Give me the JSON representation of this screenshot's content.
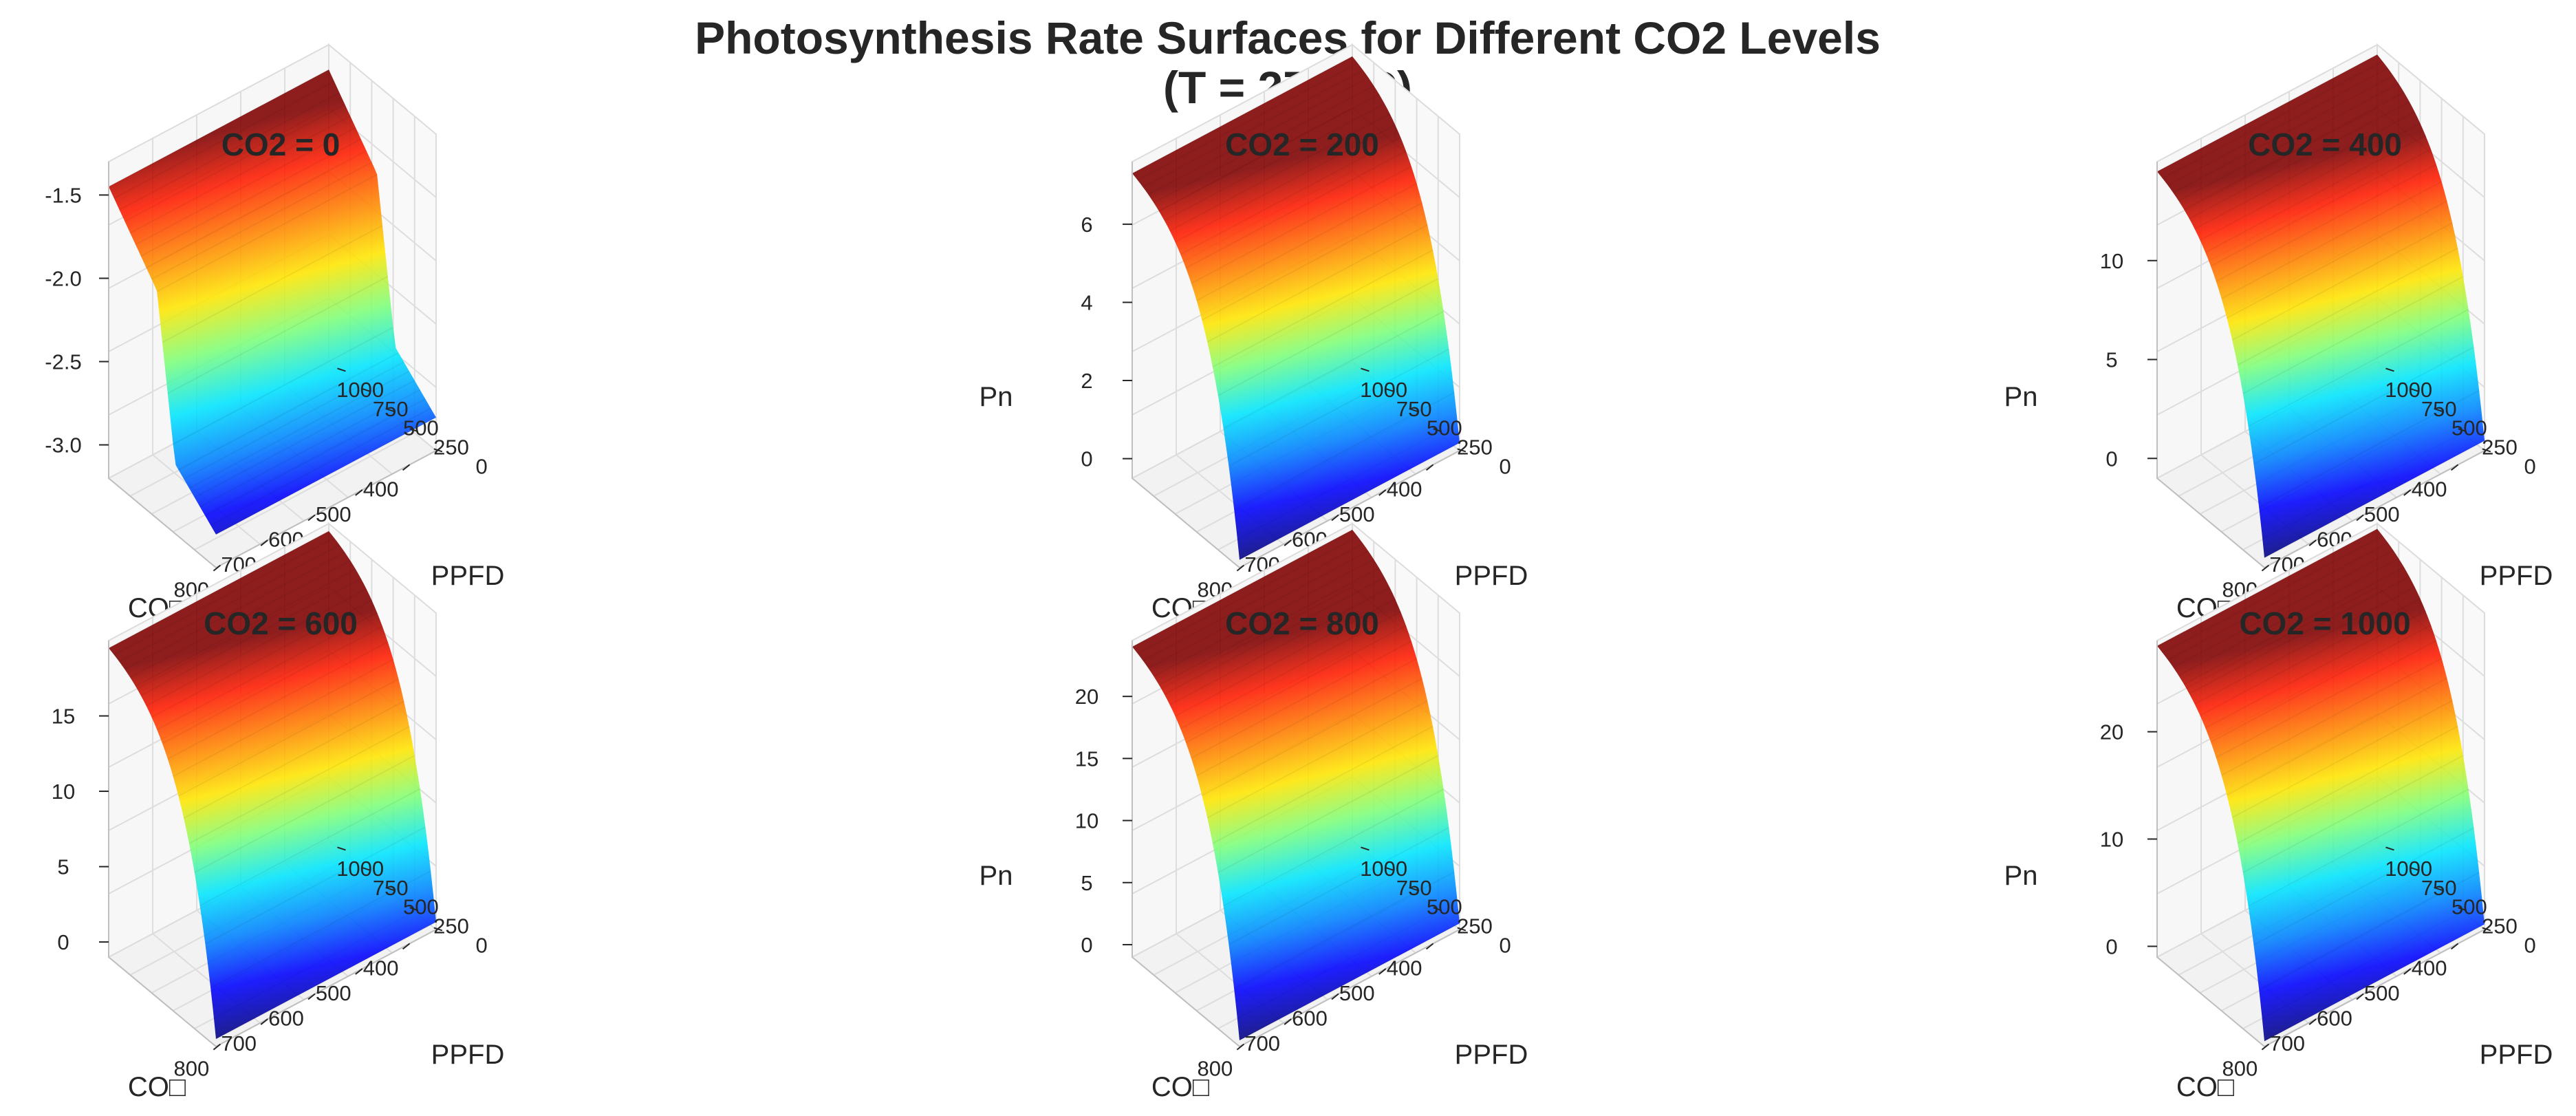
{
  "title_line1": "Photosynthesis Rate Surfaces for Different CO2 Levels",
  "title_line2": "(T = 27.0°C)",
  "colormap": [
    "#00007f",
    "#0000ff",
    "#0080ff",
    "#00e5ff",
    "#7dff7a",
    "#ffe600",
    "#ff8000",
    "#ff1a00",
    "#7f0000"
  ],
  "chart_data": [
    {
      "type": "surface",
      "title": "CO2 = 0",
      "xlabel": "CO□",
      "ylabel": "PPFD",
      "zlabel": "",
      "x_ticks": [
        800,
        700,
        600,
        500,
        400
      ],
      "y_ticks": [
        0,
        250,
        500,
        750,
        1000
      ],
      "z_ticks": [
        "-3.0",
        "-2.5",
        "-2.0",
        "-1.5"
      ],
      "zlim": [
        -3.2,
        -1.3
      ],
      "z_min": -3.0,
      "z_max": -1.45
    },
    {
      "type": "surface",
      "title": "CO2 = 200",
      "xlabel": "CO□",
      "ylabel": "PPFD",
      "zlabel": "Pn",
      "x_ticks": [
        800,
        700,
        600,
        500,
        400
      ],
      "y_ticks": [
        0,
        250,
        500,
        750,
        1000
      ],
      "z_ticks": [
        "0",
        "2",
        "4",
        "6"
      ],
      "zlim": [
        -0.5,
        7.6
      ],
      "z_min": -0.3,
      "z_max": 7.3
    },
    {
      "type": "surface",
      "title": "CO2 = 400",
      "xlabel": "CO□",
      "ylabel": "PPFD",
      "zlabel": "Pn",
      "x_ticks": [
        800,
        700,
        600,
        500,
        400
      ],
      "y_ticks": [
        0,
        250,
        500,
        750,
        1000
      ],
      "z_ticks": [
        "0",
        "5",
        "10"
      ],
      "zlim": [
        -1,
        15
      ],
      "z_min": -0.5,
      "z_max": 14.5
    },
    {
      "type": "surface",
      "title": "CO2 = 600",
      "xlabel": "CO□",
      "ylabel": "PPFD",
      "zlabel": "",
      "x_ticks": [
        800,
        700,
        600,
        500,
        400
      ],
      "y_ticks": [
        0,
        250,
        500,
        750,
        1000
      ],
      "z_ticks": [
        "0",
        "5",
        "10",
        "15"
      ],
      "zlim": [
        -1,
        20
      ],
      "z_min": -0.5,
      "z_max": 19.5
    },
    {
      "type": "surface",
      "title": "CO2 = 800",
      "xlabel": "CO□",
      "ylabel": "PPFD",
      "zlabel": "Pn",
      "x_ticks": [
        800,
        700,
        600,
        500,
        400
      ],
      "y_ticks": [
        0,
        250,
        500,
        750,
        1000
      ],
      "z_ticks": [
        "0",
        "5",
        "10",
        "15",
        "20"
      ],
      "zlim": [
        -1,
        24.5
      ],
      "z_min": -0.5,
      "z_max": 24
    },
    {
      "type": "surface",
      "title": "CO2 = 1000",
      "xlabel": "CO□",
      "ylabel": "PPFD",
      "zlabel": "Pn",
      "x_ticks": [
        800,
        700,
        600,
        500,
        400
      ],
      "y_ticks": [
        0,
        250,
        500,
        750,
        1000
      ],
      "z_ticks": [
        "0",
        "10",
        "20"
      ],
      "zlim": [
        -1,
        28.5
      ],
      "z_min": -0.5,
      "z_max": 28
    }
  ]
}
